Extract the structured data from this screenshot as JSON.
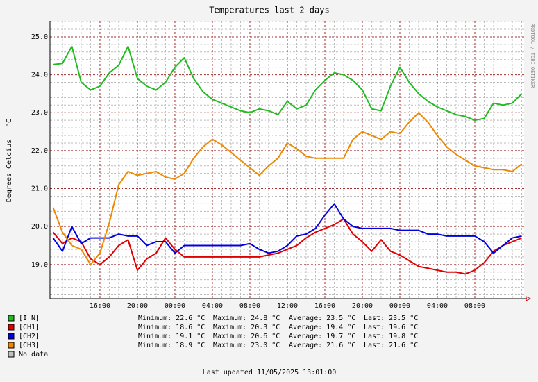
{
  "chart_data": {
    "type": "line",
    "title": "Temperatures last 2 days",
    "ylabel": "Degrees Celcius",
    "y_unit": "°C",
    "side_text": "RRDTOOL / TOBI OETIKER",
    "footer": "Last updated 11/05/2025 13:01:00",
    "no_data_label": "No data",
    "no_data_color": "#c0c0c0",
    "stat_labels": [
      "Minimum:",
      "Maximum:",
      "Average:",
      "Last:"
    ],
    "stat_unit": "°C",
    "grid": true,
    "xlim": [
      10.67,
      61.26
    ],
    "ylim": [
      18.1,
      25.42
    ],
    "xticks": [
      {
        "value": 16,
        "label": "16:00"
      },
      {
        "value": 20,
        "label": "20:00"
      },
      {
        "value": 24,
        "label": "00:00"
      },
      {
        "value": 28,
        "label": "04:00"
      },
      {
        "value": 32,
        "label": "08:00"
      },
      {
        "value": 36,
        "label": "12:00"
      },
      {
        "value": 40,
        "label": "16:00"
      },
      {
        "value": 44,
        "label": "20:00"
      },
      {
        "value": 48,
        "label": "00:00"
      },
      {
        "value": 52,
        "label": "04:00"
      },
      {
        "value": 56,
        "label": "08:00"
      }
    ],
    "yticks": [
      {
        "value": 19,
        "label": "19.0"
      },
      {
        "value": 20,
        "label": "20.0"
      },
      {
        "value": 21,
        "label": "21.0"
      },
      {
        "value": 22,
        "label": "22.0"
      },
      {
        "value": 23,
        "label": "23.0"
      },
      {
        "value": 24,
        "label": "24.0"
      },
      {
        "value": 25,
        "label": "25.0"
      }
    ],
    "yminorticks": [
      18.2,
      18.4,
      18.6,
      18.8,
      19.2,
      19.4,
      19.6,
      19.8,
      20.2,
      20.4,
      20.6,
      20.8,
      21.2,
      21.4,
      21.6,
      21.8,
      22.2,
      22.4,
      22.6,
      22.8,
      23.2,
      23.4,
      23.6,
      23.8,
      24.2,
      24.4,
      24.6,
      24.8,
      25.2,
      25.4
    ],
    "x": [
      11,
      12,
      13,
      14,
      15,
      16,
      17,
      18,
      19,
      20,
      21,
      22,
      23,
      24,
      25,
      26,
      27,
      28,
      29,
      30,
      31,
      32,
      33,
      34,
      35,
      36,
      37,
      38,
      39,
      40,
      41,
      42,
      43,
      44,
      45,
      46,
      47,
      48,
      49,
      50,
      51,
      52,
      53,
      54,
      55,
      56,
      57,
      58,
      59,
      60,
      61
    ],
    "series": [
      {
        "name": "[I N]",
        "color": "#22bb22",
        "stats": [
          "22.6",
          "24.8",
          "23.5",
          "23.5"
        ],
        "values": [
          24.27,
          24.3,
          24.75,
          23.8,
          23.6,
          23.7,
          24.05,
          24.25,
          24.75,
          23.9,
          23.7,
          23.6,
          23.8,
          24.2,
          24.45,
          23.9,
          23.55,
          23.35,
          23.25,
          23.15,
          23.05,
          23.0,
          23.1,
          23.05,
          22.95,
          23.3,
          23.1,
          23.2,
          23.6,
          23.85,
          24.05,
          24.0,
          23.85,
          23.6,
          23.1,
          23.05,
          23.7,
          24.2,
          23.8,
          23.5,
          23.3,
          23.15,
          23.05,
          22.95,
          22.9,
          22.8,
          22.85,
          23.25,
          23.2,
          23.25,
          23.5
        ]
      },
      {
        "name": "[CH1]",
        "color": "#e00000",
        "stats": [
          "18.6",
          "20.3",
          "19.4",
          "19.6"
        ],
        "values": [
          19.85,
          19.55,
          19.7,
          19.6,
          19.15,
          19.0,
          19.2,
          19.5,
          19.65,
          18.85,
          19.15,
          19.3,
          19.7,
          19.4,
          19.2,
          19.2,
          19.2,
          19.2,
          19.2,
          19.2,
          19.2,
          19.2,
          19.2,
          19.25,
          19.3,
          19.4,
          19.5,
          19.7,
          19.85,
          19.95,
          20.05,
          20.2,
          19.8,
          19.6,
          19.35,
          19.65,
          19.35,
          19.25,
          19.1,
          18.95,
          18.9,
          18.85,
          18.8,
          18.8,
          18.75,
          18.85,
          19.05,
          19.35,
          19.5,
          19.6,
          19.7
        ]
      },
      {
        "name": "[CH2]",
        "color": "#0000e0",
        "stats": [
          "19.1",
          "20.6",
          "19.7",
          "19.8"
        ],
        "values": [
          19.7,
          19.35,
          20.0,
          19.55,
          19.7,
          19.7,
          19.7,
          19.8,
          19.75,
          19.75,
          19.5,
          19.6,
          19.6,
          19.3,
          19.5,
          19.5,
          19.5,
          19.5,
          19.5,
          19.5,
          19.5,
          19.55,
          19.4,
          19.3,
          19.35,
          19.5,
          19.75,
          19.8,
          19.95,
          20.3,
          20.6,
          20.2,
          20.0,
          19.95,
          19.95,
          19.95,
          19.95,
          19.9,
          19.9,
          19.9,
          19.8,
          19.8,
          19.75,
          19.75,
          19.75,
          19.75,
          19.6,
          19.3,
          19.5,
          19.7,
          19.75
        ]
      },
      {
        "name": "[CH3]",
        "color": "#ee8800",
        "stats": [
          "18.9",
          "23.0",
          "21.6",
          "21.6"
        ],
        "values": [
          20.5,
          19.85,
          19.5,
          19.4,
          19.0,
          19.3,
          20.1,
          21.1,
          21.45,
          21.35,
          21.4,
          21.45,
          21.3,
          21.25,
          21.4,
          21.8,
          22.1,
          22.3,
          22.15,
          21.95,
          21.75,
          21.55,
          21.35,
          21.6,
          21.8,
          22.2,
          22.05,
          21.85,
          21.8,
          21.8,
          21.8,
          21.8,
          22.3,
          22.5,
          22.4,
          22.3,
          22.5,
          22.45,
          22.75,
          23.0,
          22.75,
          22.4,
          22.1,
          21.9,
          21.75,
          21.6,
          21.55,
          21.5,
          21.5,
          21.45,
          21.65
        ]
      }
    ]
  }
}
